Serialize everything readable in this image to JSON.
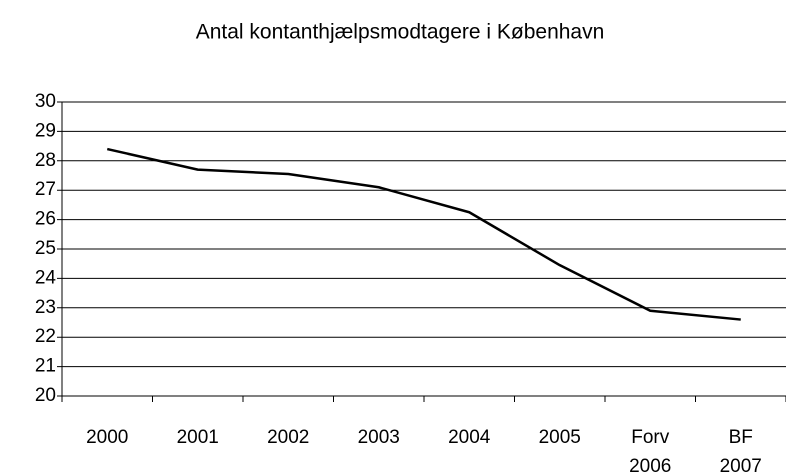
{
  "chart_data": {
    "type": "line",
    "title": "Antal kontanthjælpsmodtagere i København",
    "categories": [
      "2000",
      "2001",
      "2002",
      "2003",
      "2004",
      "2005",
      "Forv 2006",
      "BF 2007"
    ],
    "values": [
      28.4,
      27.7,
      27.55,
      27.1,
      26.25,
      24.45,
      22.9,
      22.6
    ],
    "color": "#000000",
    "ylim": [
      20,
      30
    ],
    "yticks": [
      20,
      21,
      22,
      23,
      24,
      25,
      26,
      27,
      28,
      29,
      30
    ],
    "grid": true
  }
}
